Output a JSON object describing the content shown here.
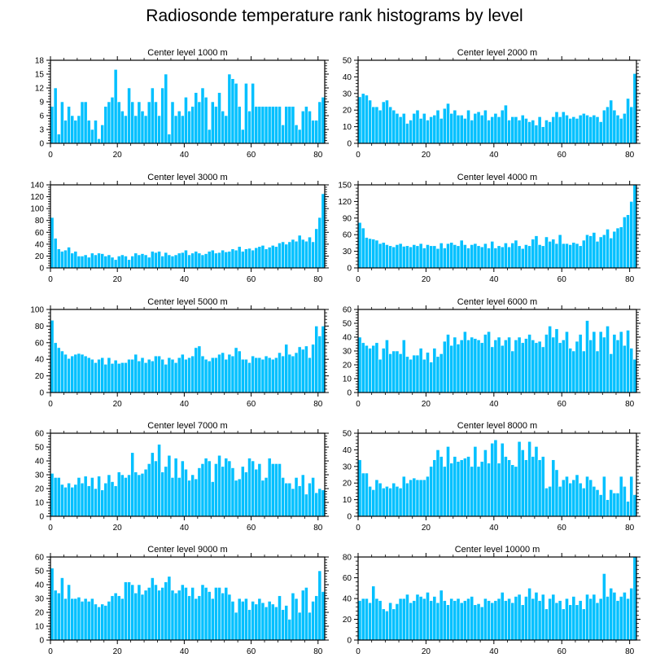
{
  "title": "Radiosonde temperature rank histograms by level",
  "style": {
    "bar_color": "#00c0ff",
    "bar_edge": "#ffffff",
    "axis_color": "#000000"
  },
  "chart_data": [
    {
      "type": "bar",
      "title": "Center level 1000 m",
      "xlabel": "",
      "ylabel": "",
      "xlim": [
        0,
        82
      ],
      "ylim": [
        0,
        18
      ],
      "yticks": [
        0,
        3,
        6,
        9,
        12,
        15,
        18
      ],
      "xticks": [
        0,
        20,
        40,
        60,
        80
      ],
      "values": [
        8,
        12,
        2,
        9,
        5,
        8,
        6,
        5,
        6,
        9,
        9,
        5,
        3,
        5,
        1,
        4,
        8,
        9,
        10,
        16,
        9,
        7,
        6,
        12,
        9,
        6,
        9,
        7,
        6,
        9,
        12,
        9,
        6,
        12,
        15,
        2,
        9,
        6,
        7,
        6,
        10,
        7,
        8,
        11,
        9,
        12,
        10,
        3,
        9,
        8,
        11,
        7,
        6,
        15,
        14,
        13,
        8,
        3,
        13,
        7,
        13,
        8,
        8,
        8,
        8,
        8,
        8,
        8,
        8,
        4,
        8,
        8,
        8,
        4,
        3,
        7,
        8,
        7,
        5,
        5,
        9,
        10
      ]
    },
    {
      "type": "bar",
      "title": "Center level 2000 m",
      "xlabel": "",
      "ylabel": "",
      "xlim": [
        0,
        82
      ],
      "ylim": [
        0,
        50
      ],
      "yticks": [
        0,
        10,
        20,
        30,
        40,
        50
      ],
      "xticks": [
        0,
        20,
        40,
        60,
        80
      ],
      "values": [
        28,
        30,
        29,
        26,
        22,
        22,
        20,
        25,
        26,
        22,
        20,
        18,
        16,
        18,
        12,
        14,
        18,
        20,
        15,
        18,
        14,
        16,
        17,
        20,
        15,
        21,
        24,
        18,
        20,
        17,
        17,
        15,
        20,
        14,
        18,
        19,
        17,
        20,
        14,
        16,
        18,
        16,
        20,
        23,
        14,
        16,
        16,
        14,
        17,
        15,
        13,
        14,
        11,
        16,
        10,
        14,
        13,
        16,
        19,
        16,
        19,
        17,
        15,
        16,
        15,
        17,
        18,
        17,
        16,
        17,
        16,
        13,
        20,
        22,
        26,
        20,
        17,
        15,
        18,
        27,
        22,
        42
      ]
    },
    {
      "type": "bar",
      "title": "Center level 3000 m",
      "xlabel": "",
      "ylabel": "",
      "xlim": [
        0,
        82
      ],
      "ylim": [
        0,
        140
      ],
      "yticks": [
        0,
        20,
        40,
        60,
        80,
        100,
        120,
        140
      ],
      "xticks": [
        0,
        20,
        40,
        60,
        80
      ],
      "values": [
        85,
        50,
        32,
        28,
        30,
        35,
        25,
        28,
        20,
        20,
        22,
        18,
        25,
        22,
        25,
        24,
        20,
        22,
        18,
        14,
        20,
        22,
        20,
        14,
        20,
        25,
        22,
        24,
        22,
        18,
        28,
        26,
        28,
        20,
        26,
        22,
        20,
        22,
        25,
        26,
        30,
        22,
        25,
        28,
        25,
        22,
        24,
        28,
        30,
        25,
        26,
        30,
        27,
        28,
        32,
        30,
        36,
        28,
        32,
        33,
        30,
        34,
        36,
        38,
        32,
        35,
        38,
        36,
        42,
        44,
        40,
        44,
        48,
        45,
        55,
        48,
        45,
        52,
        44,
        66,
        85,
        125
      ]
    },
    {
      "type": "bar",
      "title": "Center level 4000 m",
      "xlabel": "",
      "ylabel": "",
      "xlim": [
        0,
        82
      ],
      "ylim": [
        0,
        150
      ],
      "yticks": [
        0,
        30,
        60,
        90,
        120,
        150
      ],
      "xticks": [
        0,
        20,
        40,
        60,
        80
      ],
      "values": [
        82,
        72,
        55,
        53,
        52,
        50,
        44,
        46,
        42,
        40,
        38,
        42,
        44,
        39,
        40,
        38,
        42,
        40,
        44,
        36,
        42,
        40,
        40,
        35,
        45,
        36,
        44,
        46,
        42,
        40,
        50,
        42,
        36,
        42,
        44,
        40,
        38,
        44,
        36,
        48,
        36,
        40,
        38,
        45,
        38,
        45,
        50,
        40,
        35,
        42,
        40,
        52,
        58,
        42,
        40,
        56,
        48,
        52,
        44,
        60,
        44,
        44,
        42,
        46,
        44,
        40,
        50,
        60,
        58,
        64,
        48,
        56,
        60,
        70,
        54,
        66,
        72,
        74,
        92,
        96,
        120,
        150
      ]
    },
    {
      "type": "bar",
      "title": "Center level 5000 m",
      "xlabel": "",
      "ylabel": "",
      "xlim": [
        0,
        82
      ],
      "ylim": [
        0,
        100
      ],
      "yticks": [
        0,
        20,
        40,
        60,
        80,
        100
      ],
      "xticks": [
        0,
        20,
        40,
        60,
        80
      ],
      "values": [
        87,
        60,
        54,
        50,
        46,
        41,
        44,
        46,
        47,
        46,
        44,
        42,
        40,
        36,
        40,
        42,
        34,
        42,
        35,
        39,
        35,
        36,
        36,
        40,
        40,
        46,
        38,
        42,
        36,
        40,
        38,
        44,
        44,
        40,
        34,
        42,
        40,
        36,
        42,
        46,
        40,
        42,
        44,
        54,
        56,
        44,
        40,
        38,
        42,
        42,
        46,
        48,
        40,
        46,
        44,
        54,
        50,
        40,
        40,
        36,
        44,
        42,
        42,
        40,
        44,
        42,
        40,
        42,
        48,
        44,
        58,
        46,
        44,
        48,
        55,
        52,
        56,
        42,
        58,
        80,
        68,
        80
      ]
    },
    {
      "type": "bar",
      "title": "Center level 6000 m",
      "xlabel": "",
      "ylabel": "",
      "xlim": [
        0,
        82
      ],
      "ylim": [
        0,
        60
      ],
      "yticks": [
        0,
        10,
        20,
        30,
        40,
        50,
        60
      ],
      "xticks": [
        0,
        20,
        40,
        60,
        80
      ],
      "values": [
        40,
        36,
        34,
        32,
        34,
        36,
        24,
        32,
        38,
        28,
        30,
        30,
        28,
        38,
        26,
        24,
        27,
        27,
        32,
        24,
        29,
        22,
        32,
        26,
        28,
        37,
        42,
        34,
        40,
        35,
        38,
        44,
        38,
        40,
        39,
        38,
        36,
        42,
        44,
        33,
        38,
        40,
        34,
        38,
        40,
        30,
        38,
        40,
        36,
        39,
        42,
        38,
        36,
        37,
        33,
        42,
        48,
        40,
        46,
        36,
        38,
        44,
        32,
        30,
        37,
        42,
        30,
        52,
        38,
        44,
        30,
        44,
        40,
        48,
        28,
        42,
        38,
        44,
        34,
        45,
        32,
        24
      ]
    },
    {
      "type": "bar",
      "title": "Center level 7000 m",
      "xlabel": "",
      "ylabel": "",
      "xlim": [
        0,
        82
      ],
      "ylim": [
        0,
        60
      ],
      "yticks": [
        0,
        10,
        20,
        30,
        40,
        50,
        60
      ],
      "xticks": [
        0,
        20,
        40,
        60,
        80
      ],
      "values": [
        31,
        28,
        28,
        23,
        21,
        24,
        21,
        23,
        28,
        24,
        29,
        22,
        28,
        20,
        29,
        19,
        24,
        30,
        25,
        22,
        32,
        30,
        28,
        30,
        46,
        32,
        30,
        31,
        34,
        38,
        46,
        40,
        52,
        32,
        36,
        44,
        28,
        42,
        28,
        40,
        34,
        26,
        30,
        27,
        35,
        38,
        42,
        40,
        25,
        38,
        44,
        36,
        42,
        40,
        35,
        26,
        27,
        36,
        32,
        42,
        40,
        34,
        38,
        26,
        28,
        42,
        38,
        38,
        38,
        28,
        24,
        24,
        20,
        28,
        22,
        30,
        16,
        24,
        28,
        17,
        20,
        19
      ]
    },
    {
      "type": "bar",
      "title": "Center level 8000 m",
      "xlabel": "",
      "ylabel": "",
      "xlim": [
        0,
        82
      ],
      "ylim": [
        0,
        50
      ],
      "yticks": [
        0,
        10,
        20,
        30,
        40,
        50
      ],
      "xticks": [
        0,
        20,
        40,
        60,
        80
      ],
      "values": [
        34,
        26,
        26,
        18,
        16,
        22,
        20,
        17,
        18,
        17,
        20,
        18,
        17,
        24,
        20,
        22,
        23,
        22,
        22,
        22,
        24,
        30,
        34,
        40,
        36,
        30,
        42,
        32,
        36,
        33,
        34,
        35,
        36,
        30,
        42,
        30,
        33,
        40,
        32,
        44,
        46,
        32,
        44,
        36,
        34,
        31,
        30,
        45,
        40,
        34,
        45,
        36,
        42,
        34,
        36,
        17,
        18,
        34,
        28,
        18,
        22,
        24,
        20,
        22,
        25,
        20,
        17,
        24,
        22,
        18,
        16,
        13,
        24,
        10,
        16,
        14,
        14,
        24,
        18,
        9,
        24,
        13
      ]
    },
    {
      "type": "bar",
      "title": "Center level 9000 m",
      "xlabel": "",
      "ylabel": "",
      "xlim": [
        0,
        82
      ],
      "ylim": [
        0,
        60
      ],
      "yticks": [
        0,
        10,
        20,
        30,
        40,
        50,
        60
      ],
      "xticks": [
        0,
        20,
        40,
        60,
        80
      ],
      "values": [
        52,
        36,
        34,
        45,
        30,
        40,
        30,
        30,
        31,
        28,
        30,
        28,
        30,
        26,
        24,
        26,
        25,
        28,
        32,
        34,
        32,
        30,
        42,
        42,
        40,
        34,
        40,
        33,
        36,
        38,
        45,
        40,
        36,
        38,
        42,
        46,
        36,
        34,
        36,
        40,
        38,
        32,
        38,
        30,
        32,
        40,
        38,
        35,
        30,
        38,
        38,
        34,
        38,
        33,
        28,
        20,
        30,
        28,
        30,
        22,
        28,
        26,
        30,
        27,
        24,
        28,
        26,
        24,
        32,
        22,
        25,
        15,
        34,
        30,
        20,
        36,
        38,
        20,
        28,
        32,
        50,
        35
      ]
    },
    {
      "type": "bar",
      "title": "Center level 10000 m",
      "xlabel": "",
      "ylabel": "",
      "xlim": [
        0,
        82
      ],
      "ylim": [
        0,
        80
      ],
      "yticks": [
        0,
        20,
        40,
        60,
        80
      ],
      "xticks": [
        0,
        20,
        40,
        60,
        80
      ],
      "values": [
        38,
        40,
        40,
        36,
        52,
        40,
        38,
        30,
        28,
        36,
        30,
        35,
        40,
        40,
        44,
        36,
        38,
        44,
        42,
        40,
        46,
        38,
        42,
        36,
        48,
        38,
        34,
        40,
        38,
        40,
        36,
        38,
        40,
        42,
        34,
        35,
        32,
        40,
        38,
        36,
        38,
        40,
        46,
        38,
        40,
        36,
        42,
        44,
        34,
        42,
        50,
        40,
        46,
        38,
        44,
        30,
        40,
        44,
        36,
        38,
        30,
        40,
        34,
        42,
        34,
        38,
        30,
        44,
        40,
        44,
        36,
        40,
        64,
        42,
        50,
        46,
        38,
        42,
        46,
        40,
        50,
        80
      ]
    }
  ]
}
